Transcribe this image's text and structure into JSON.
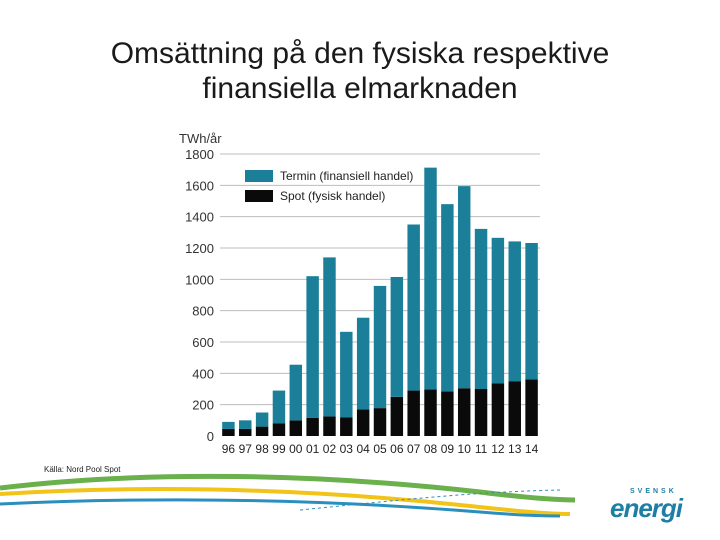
{
  "title": {
    "line1": "Omsättning på den fysiska respektive",
    "line2": "finansiella elmarknaden"
  },
  "chart_data": {
    "type": "bar",
    "stacked": true,
    "unit_label": "TWh/år",
    "categories": [
      "96",
      "97",
      "98",
      "99",
      "00",
      "01",
      "02",
      "03",
      "04",
      "05",
      "06",
      "07",
      "08",
      "09",
      "10",
      "11",
      "12",
      "13",
      "14"
    ],
    "series": [
      {
        "name": "Spot (fysisk handel)",
        "color": "#0a0a0a",
        "values": [
          45,
          45,
          60,
          80,
          100,
          115,
          125,
          120,
          170,
          178,
          250,
          290,
          298,
          285,
          305,
          300,
          335,
          350,
          362
        ]
      },
      {
        "name": "Termin (finansiell handel)",
        "color": "#1b7f99",
        "values": [
          45,
          55,
          90,
          210,
          355,
          905,
          1015,
          545,
          585,
          780,
          765,
          1060,
          1415,
          1195,
          1290,
          1022,
          930,
          892,
          870
        ]
      }
    ],
    "y_ticks": [
      0,
      200,
      400,
      600,
      800,
      1000,
      1200,
      1400,
      1600,
      1800
    ],
    "ylim": [
      0,
      1800
    ],
    "legend": [
      "Termin (finansiell handel)",
      "Spot (fysisk handel)"
    ],
    "legend_position": "top-right",
    "grid": true
  },
  "source_note": "Källa: Nord Pool Spot",
  "logo": {
    "small_text": "SVENSK",
    "main_text": "energi"
  },
  "colors": {
    "termin": "#1b7f99",
    "spot": "#0a0a0a",
    "grid": "#bdbdbd",
    "swoosh_green": "#6ab04c",
    "swoosh_yellow": "#f2c318",
    "swoosh_blue": "#2a8fbd"
  }
}
